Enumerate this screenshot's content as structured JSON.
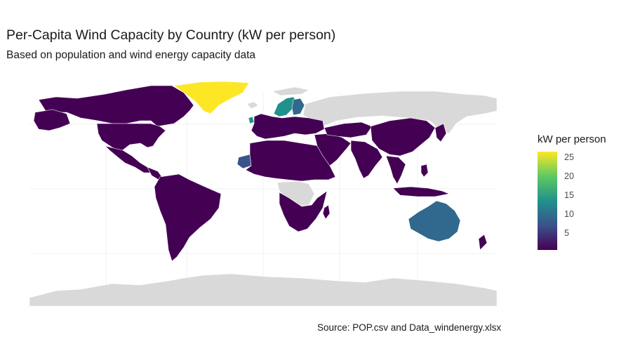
{
  "title": "Per-Capita Wind Capacity by Country (kW per person)",
  "subtitle": "Based on population and wind energy capacity data",
  "caption": "Source: POP.csv and Data_windenergy.xlsx",
  "legend": {
    "title": "kW per person",
    "ticks": [
      "5",
      "10",
      "15",
      "20",
      "25"
    ],
    "tick_values": [
      5,
      10,
      15,
      20,
      25
    ],
    "range": [
      0.5,
      26.5
    ],
    "palette": [
      "#440154",
      "#3b528b",
      "#21918c",
      "#5ec962",
      "#fde725"
    ]
  },
  "colors": {
    "no_data": "#d9d9d9",
    "background": "#ffffff",
    "grid": "#ebebeb"
  },
  "map_regions": [
    {
      "name": "Greenland",
      "value": 26
    },
    {
      "name": "Sweden / Norway",
      "value": 14
    },
    {
      "name": "Finland",
      "value": 11
    },
    {
      "name": "Australia",
      "value": 8
    },
    {
      "name": "Western Sahara",
      "value": 6
    },
    {
      "name": "Other countries with data",
      "value": 0.5
    }
  ]
}
